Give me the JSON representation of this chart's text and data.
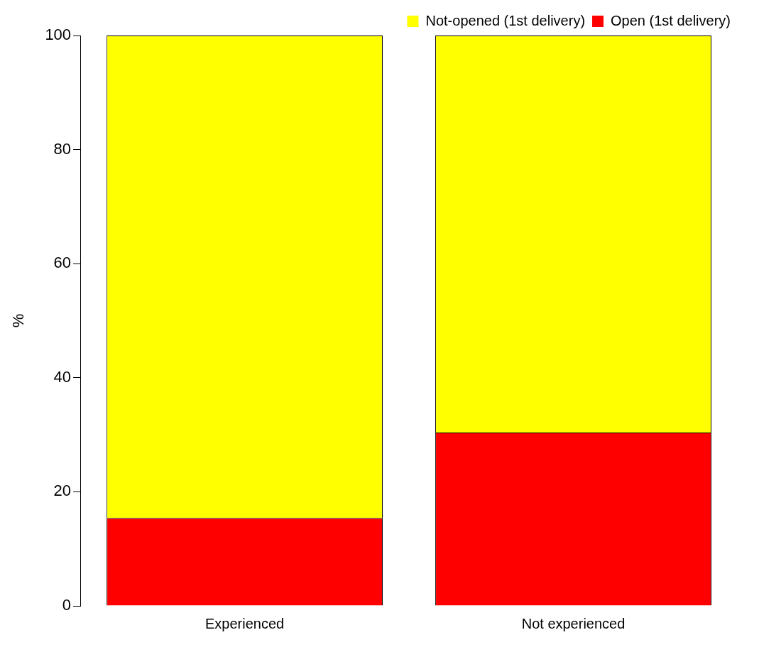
{
  "chart_data": {
    "type": "bar",
    "ylabel": "%",
    "categories": [
      "Experienced",
      "Not experienced"
    ],
    "stacked": true,
    "series": [
      {
        "name": "Open (1st delivery)",
        "color": "#ff0000",
        "values": [
          15.4,
          30.4
        ]
      },
      {
        "name": "Not-opened (1st delivery)",
        "color": "#ffff00",
        "values": [
          84.6,
          69.6
        ]
      }
    ],
    "ylim": [
      0,
      100
    ],
    "yticks": [
      0,
      20,
      40,
      60,
      80,
      100
    ],
    "grid": false,
    "legend": "top right"
  }
}
